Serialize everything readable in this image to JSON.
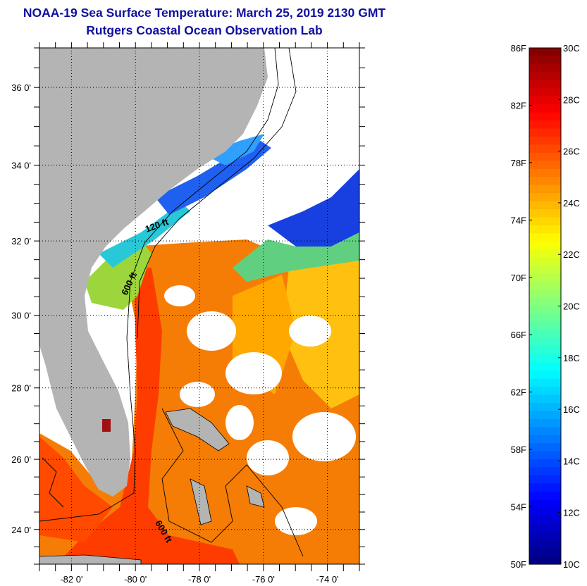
{
  "header": {
    "title": "NOAA-19 Sea Surface Temperature:  March 25, 2019 2130 GMT",
    "subtitle": "Rutgers Coastal Ocean Observation Lab"
  },
  "map": {
    "lon_range": [
      -83,
      -73
    ],
    "lat_range": [
      23,
      37
    ],
    "lon_ticks": [
      {
        "value": -82,
        "label": "-82 0'"
      },
      {
        "value": -80,
        "label": "-80 0'"
      },
      {
        "value": -78,
        "label": "-78 0'"
      },
      {
        "value": -76,
        "label": "-76 0'"
      },
      {
        "value": -74,
        "label": "-74 0'"
      }
    ],
    "lat_ticks": [
      {
        "value": 36,
        "label": "36 0'"
      },
      {
        "value": 34,
        "label": "34 0'"
      },
      {
        "value": 32,
        "label": "32 0'"
      },
      {
        "value": 30,
        "label": "30 0'"
      },
      {
        "value": 28,
        "label": "28 0'"
      },
      {
        "value": 26,
        "label": "26 0'"
      },
      {
        "value": 24,
        "label": "24 0'"
      }
    ],
    "contour_labels": [
      "120 ft",
      "600 ft",
      "600 ft"
    ],
    "colors": {
      "land": "#b4b4b4",
      "cloud": "#ffffff"
    }
  },
  "colorbar": {
    "fahrenheit_labels": [
      "86F",
      "82F",
      "78F",
      "74F",
      "70F",
      "66F",
      "62F",
      "58F",
      "54F",
      "50F"
    ],
    "celsius_labels": [
      "30C",
      "28C",
      "26C",
      "24C",
      "22C",
      "20C",
      "18C",
      "16C",
      "14C",
      "12C",
      "10C"
    ],
    "range_c": [
      10,
      30
    ],
    "colormap": "jet"
  }
}
